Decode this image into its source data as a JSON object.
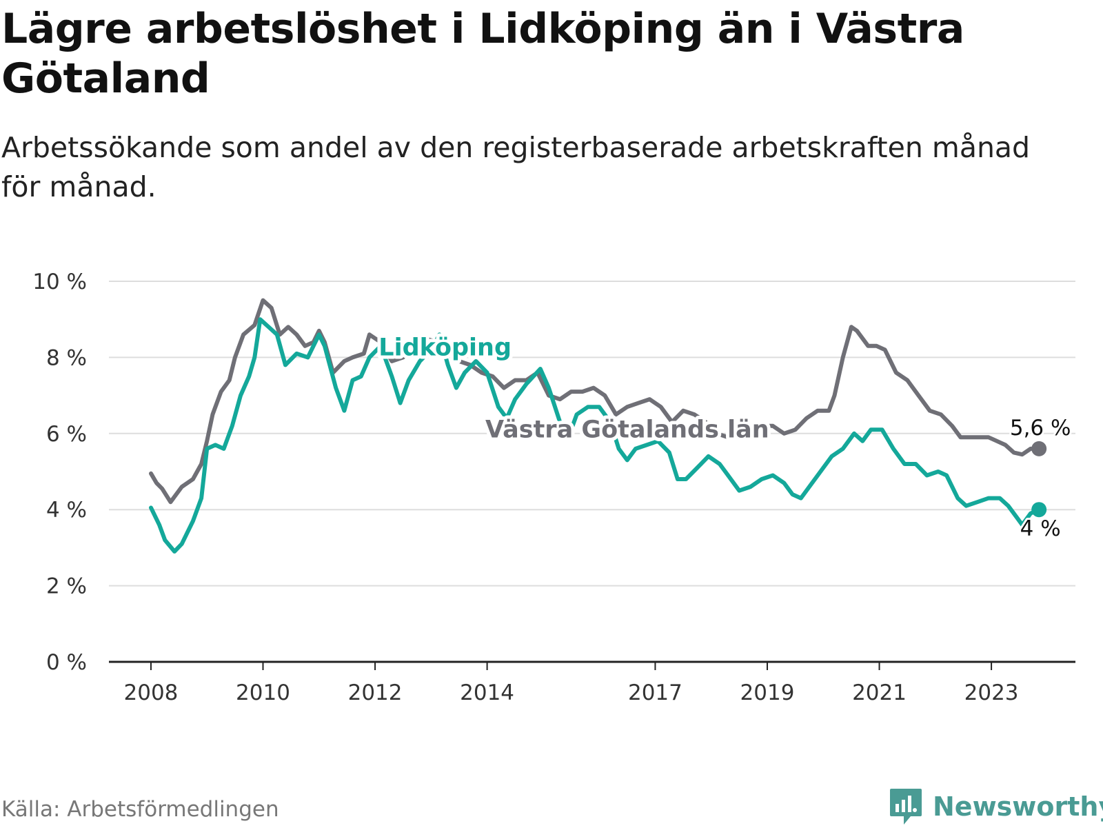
{
  "title": "Lägre arbetslöshet i Lidköping än i Västra Götaland",
  "subtitle": "Arbetssökande som andel av den registerbaserade arbetskraften månad för månad.",
  "source": "Källa: Arbetsförmedlingen",
  "brand": "Newsworthy",
  "colors": {
    "lidkoping": "#14a89a",
    "vg": "#6f6f76",
    "grid": "#dddddd",
    "axis": "#222222",
    "brand": "#4a9b94"
  },
  "chart_data": {
    "type": "line",
    "title": "Lägre arbetslöshet i Lidköping än i Västra Götaland",
    "xlabel": "",
    "ylabel": "",
    "ylim": [
      0,
      10
    ],
    "y_ticks": [
      0,
      2,
      4,
      6,
      8,
      10
    ],
    "y_tick_labels": [
      "0 %",
      "2 %",
      "4 %",
      "6 %",
      "8 %",
      "10 %"
    ],
    "x_range": [
      2007.25,
      2024.5
    ],
    "x_ticks": [
      2008,
      2010,
      2012,
      2014,
      2017,
      2019,
      2021,
      2023
    ],
    "x_tick_labels": [
      "2008",
      "2010",
      "2012",
      "2014",
      "2017",
      "2019",
      "2021",
      "2023"
    ],
    "series": [
      {
        "name": "Västra Götalands län",
        "color": "#6f6f76",
        "label_pos": [
          2016.5,
          5.9
        ],
        "end_label": "5,6 %",
        "points": [
          [
            2008.0,
            4.95
          ],
          [
            2008.1,
            4.7
          ],
          [
            2008.2,
            4.55
          ],
          [
            2008.35,
            4.2
          ],
          [
            2008.55,
            4.6
          ],
          [
            2008.75,
            4.8
          ],
          [
            2008.9,
            5.2
          ],
          [
            2009.0,
            5.8
          ],
          [
            2009.1,
            6.5
          ],
          [
            2009.25,
            7.1
          ],
          [
            2009.4,
            7.4
          ],
          [
            2009.5,
            8.0
          ],
          [
            2009.65,
            8.6
          ],
          [
            2009.85,
            8.85
          ],
          [
            2010.0,
            9.5
          ],
          [
            2010.15,
            9.3
          ],
          [
            2010.3,
            8.6
          ],
          [
            2010.45,
            8.8
          ],
          [
            2010.6,
            8.6
          ],
          [
            2010.75,
            8.3
          ],
          [
            2010.9,
            8.4
          ],
          [
            2011.0,
            8.7
          ],
          [
            2011.1,
            8.4
          ],
          [
            2011.25,
            7.6
          ],
          [
            2011.45,
            7.9
          ],
          [
            2011.6,
            8.0
          ],
          [
            2011.8,
            8.1
          ],
          [
            2011.9,
            8.6
          ],
          [
            2012.1,
            8.4
          ],
          [
            2012.3,
            7.9
          ],
          [
            2012.5,
            8.0
          ],
          [
            2012.7,
            8.3
          ],
          [
            2012.9,
            8.5
          ],
          [
            2013.1,
            8.4
          ],
          [
            2013.3,
            8.2
          ],
          [
            2013.5,
            7.9
          ],
          [
            2013.7,
            7.8
          ],
          [
            2013.9,
            7.6
          ],
          [
            2014.1,
            7.5
          ],
          [
            2014.3,
            7.2
          ],
          [
            2014.5,
            7.4
          ],
          [
            2014.7,
            7.4
          ],
          [
            2014.9,
            7.6
          ],
          [
            2015.1,
            7.0
          ],
          [
            2015.3,
            6.9
          ],
          [
            2015.5,
            7.1
          ],
          [
            2015.7,
            7.1
          ],
          [
            2015.9,
            7.2
          ],
          [
            2016.1,
            7.0
          ],
          [
            2016.3,
            6.5
          ],
          [
            2016.5,
            6.7
          ],
          [
            2016.7,
            6.8
          ],
          [
            2016.9,
            6.9
          ],
          [
            2017.1,
            6.7
          ],
          [
            2017.3,
            6.3
          ],
          [
            2017.5,
            6.6
          ],
          [
            2017.7,
            6.5
          ],
          [
            2017.9,
            6.3
          ],
          [
            2018.1,
            6.0
          ],
          [
            2018.3,
            5.9
          ],
          [
            2018.5,
            6.2
          ],
          [
            2018.7,
            6.1
          ],
          [
            2018.9,
            6.2
          ],
          [
            2019.1,
            6.2
          ],
          [
            2019.3,
            6.0
          ],
          [
            2019.5,
            6.1
          ],
          [
            2019.7,
            6.4
          ],
          [
            2019.9,
            6.6
          ],
          [
            2020.1,
            6.6
          ],
          [
            2020.2,
            7.0
          ],
          [
            2020.35,
            8.0
          ],
          [
            2020.5,
            8.8
          ],
          [
            2020.6,
            8.7
          ],
          [
            2020.8,
            8.3
          ],
          [
            2020.95,
            8.3
          ],
          [
            2021.1,
            8.2
          ],
          [
            2021.3,
            7.6
          ],
          [
            2021.5,
            7.4
          ],
          [
            2021.7,
            7.0
          ],
          [
            2021.9,
            6.6
          ],
          [
            2022.1,
            6.5
          ],
          [
            2022.3,
            6.2
          ],
          [
            2022.45,
            5.9
          ],
          [
            2022.7,
            5.9
          ],
          [
            2022.95,
            5.9
          ],
          [
            2023.1,
            5.8
          ],
          [
            2023.25,
            5.7
          ],
          [
            2023.4,
            5.5
          ],
          [
            2023.55,
            5.45
          ],
          [
            2023.7,
            5.6
          ],
          [
            2023.85,
            5.6
          ]
        ]
      },
      {
        "name": "Lidköping",
        "color": "#14a89a",
        "label_pos": [
          2013.25,
          8.05
        ],
        "end_label": "4 %",
        "points": [
          [
            2008.0,
            4.05
          ],
          [
            2008.15,
            3.6
          ],
          [
            2008.25,
            3.2
          ],
          [
            2008.42,
            2.9
          ],
          [
            2008.55,
            3.1
          ],
          [
            2008.75,
            3.7
          ],
          [
            2008.9,
            4.3
          ],
          [
            2009.0,
            5.6
          ],
          [
            2009.15,
            5.7
          ],
          [
            2009.3,
            5.6
          ],
          [
            2009.45,
            6.2
          ],
          [
            2009.6,
            7.0
          ],
          [
            2009.75,
            7.5
          ],
          [
            2009.85,
            8.0
          ],
          [
            2009.95,
            9.0
          ],
          [
            2010.1,
            8.8
          ],
          [
            2010.25,
            8.6
          ],
          [
            2010.4,
            7.8
          ],
          [
            2010.6,
            8.1
          ],
          [
            2010.8,
            8.0
          ],
          [
            2011.0,
            8.6
          ],
          [
            2011.1,
            8.3
          ],
          [
            2011.3,
            7.2
          ],
          [
            2011.45,
            6.6
          ],
          [
            2011.6,
            7.4
          ],
          [
            2011.75,
            7.5
          ],
          [
            2011.9,
            8.0
          ],
          [
            2012.1,
            8.3
          ],
          [
            2012.3,
            7.5
          ],
          [
            2012.45,
            6.8
          ],
          [
            2012.6,
            7.4
          ],
          [
            2012.8,
            7.9
          ],
          [
            2013.0,
            8.2
          ],
          [
            2013.15,
            8.6
          ],
          [
            2013.3,
            7.8
          ],
          [
            2013.45,
            7.2
          ],
          [
            2013.6,
            7.6
          ],
          [
            2013.8,
            7.9
          ],
          [
            2014.0,
            7.6
          ],
          [
            2014.2,
            6.7
          ],
          [
            2014.35,
            6.4
          ],
          [
            2014.5,
            6.9
          ],
          [
            2014.7,
            7.3
          ],
          [
            2014.95,
            7.7
          ],
          [
            2015.1,
            7.2
          ],
          [
            2015.3,
            6.3
          ],
          [
            2015.45,
            5.9
          ],
          [
            2015.6,
            6.5
          ],
          [
            2015.8,
            6.7
          ],
          [
            2016.0,
            6.7
          ],
          [
            2016.2,
            6.3
          ],
          [
            2016.35,
            5.6
          ],
          [
            2016.5,
            5.3
          ],
          [
            2016.65,
            5.6
          ],
          [
            2016.85,
            5.7
          ],
          [
            2017.05,
            5.8
          ],
          [
            2017.25,
            5.5
          ],
          [
            2017.4,
            4.8
          ],
          [
            2017.55,
            4.8
          ],
          [
            2017.75,
            5.1
          ],
          [
            2017.95,
            5.4
          ],
          [
            2018.15,
            5.2
          ],
          [
            2018.3,
            4.9
          ],
          [
            2018.5,
            4.5
          ],
          [
            2018.7,
            4.6
          ],
          [
            2018.9,
            4.8
          ],
          [
            2019.1,
            4.9
          ],
          [
            2019.3,
            4.7
          ],
          [
            2019.45,
            4.4
          ],
          [
            2019.6,
            4.3
          ],
          [
            2019.75,
            4.6
          ],
          [
            2019.95,
            5.0
          ],
          [
            2020.15,
            5.4
          ],
          [
            2020.35,
            5.6
          ],
          [
            2020.55,
            6.0
          ],
          [
            2020.7,
            5.8
          ],
          [
            2020.85,
            6.1
          ],
          [
            2021.05,
            6.1
          ],
          [
            2021.25,
            5.6
          ],
          [
            2021.45,
            5.2
          ],
          [
            2021.65,
            5.2
          ],
          [
            2021.85,
            4.9
          ],
          [
            2022.05,
            5.0
          ],
          [
            2022.2,
            4.9
          ],
          [
            2022.4,
            4.3
          ],
          [
            2022.55,
            4.1
          ],
          [
            2022.75,
            4.2
          ],
          [
            2022.95,
            4.3
          ],
          [
            2023.15,
            4.3
          ],
          [
            2023.3,
            4.1
          ],
          [
            2023.45,
            3.8
          ],
          [
            2023.55,
            3.6
          ],
          [
            2023.7,
            3.9
          ],
          [
            2023.85,
            4.0
          ]
        ]
      }
    ]
  }
}
